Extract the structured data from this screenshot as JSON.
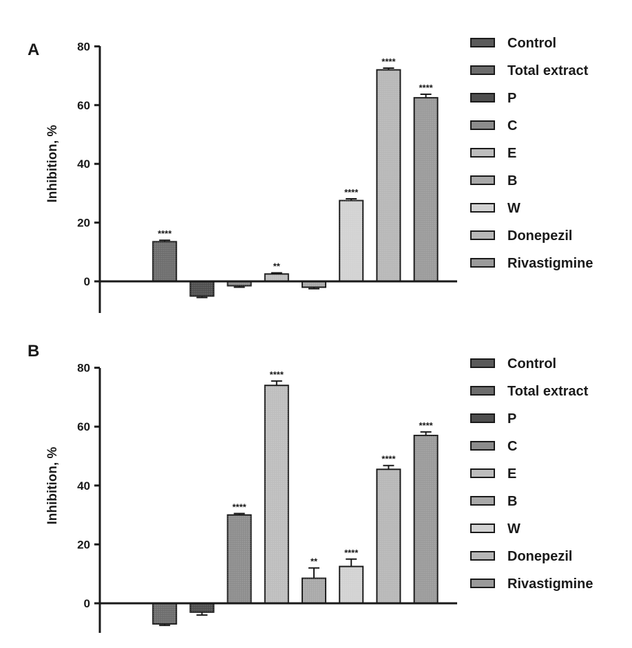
{
  "chart_data": [
    {
      "type": "bar",
      "panel": "A",
      "ylabel": "Inhibition, %",
      "ylim": [
        -10,
        80
      ],
      "yticks": [
        0,
        20,
        40,
        60,
        80
      ],
      "categories": [
        "Control",
        "Total extract",
        "P",
        "C",
        "E",
        "B",
        "W",
        "Donepezil",
        "Rivastigmine"
      ],
      "values": [
        0,
        13.5,
        -5,
        -1.5,
        2.5,
        -2,
        27.5,
        72,
        62.5
      ],
      "errors": [
        0,
        0.5,
        0.5,
        0.5,
        0.4,
        0.5,
        0.6,
        0.6,
        1.2
      ],
      "significance": [
        "",
        "****",
        "",
        "",
        "**",
        "",
        "****",
        "****",
        "****"
      ],
      "legend": [
        "Control",
        "Total extract",
        "P",
        "C",
        "E",
        "B",
        "W",
        "Donepezil",
        "Rivastigmine"
      ],
      "colors": [
        "#5a5a5a",
        "#6c6c6c",
        "#4e4e4e",
        "#8c8c8c",
        "#bdbdbd",
        "#a8a8a8",
        "#d2d2d2",
        "#b7b7b7",
        "#9a9a9a"
      ]
    },
    {
      "type": "bar",
      "panel": "B",
      "ylabel": "Inhibition, %",
      "ylim": [
        -10,
        80
      ],
      "yticks": [
        0,
        20,
        40,
        60,
        80
      ],
      "categories": [
        "Control",
        "Total extract",
        "P",
        "C",
        "E",
        "B",
        "W",
        "Donepezil",
        "Rivastigmine"
      ],
      "values": [
        0,
        -7,
        -3,
        30,
        74,
        8.5,
        12.5,
        45.5,
        57
      ],
      "errors": [
        0,
        0.5,
        1,
        0.5,
        1.5,
        3.5,
        2.5,
        1.3,
        1.2
      ],
      "significance": [
        "",
        "",
        "",
        "****",
        "****",
        "**",
        "****",
        "****",
        "****"
      ],
      "legend": [
        "Control",
        "Total extract",
        "P",
        "C",
        "E",
        "B",
        "W",
        "Donepezil",
        "Rivastigmine"
      ],
      "colors": [
        "#5a5a5a",
        "#6c6c6c",
        "#4e4e4e",
        "#8c8c8c",
        "#bdbdbd",
        "#a8a8a8",
        "#d2d2d2",
        "#b7b7b7",
        "#9a9a9a"
      ]
    }
  ]
}
